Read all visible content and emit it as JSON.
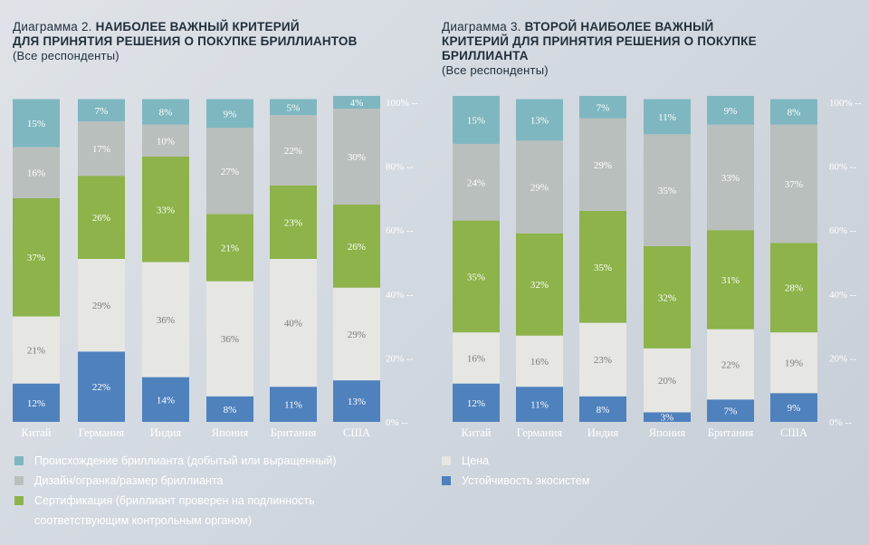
{
  "charts": [
    {
      "title_lead": "Диаграмма 2.",
      "title_bold_1": "НАИБОЛЕЕ ВАЖНЫЙ КРИТЕРИЙ",
      "title_bold_2": "ДЛЯ ПРИНЯТИЯ РЕШЕНИЯ О ПОКУПКЕ БРИЛЛИАНТОВ",
      "title_bold_3": "",
      "subtitle": "(Все респонденты)"
    },
    {
      "title_lead": "Диаграмма 3.",
      "title_bold_1": "ВТОРОЙ НАИБОЛЕЕ ВАЖНЫЙ",
      "title_bold_2": "КРИТЕРИЙ ДЛЯ ПРИНЯТИЯ РЕШЕНИЯ О ПОКУПКЕ",
      "title_bold_3": "БРИЛЛИАНТА",
      "subtitle": "(Все респонденты)"
    }
  ],
  "legend_left": [
    {
      "label": "Происхождение бриллианта (добытый или выращенный)",
      "color": "#7fb7c0"
    },
    {
      "label": "Дизайн/огранка/размер бриллианта",
      "color": "#b9bfbc"
    },
    {
      "label": "Сертификация (бриллиант проверен на подлинность",
      "color": "#8db34a"
    },
    {
      "label": "соответствующим контрольным органом)",
      "color": ""
    }
  ],
  "legend_right": [
    {
      "label": "Цена",
      "color": "#e6e6e3"
    },
    {
      "label": "Устойчивость экосистем",
      "color": "#4f81bd"
    }
  ],
  "chart_data": [
    {
      "type": "bar",
      "stacked": true,
      "categories": [
        "Китай",
        "Германия",
        "Индия",
        "Япония",
        "Британия",
        "США"
      ],
      "ylim": [
        0,
        100
      ],
      "yticks": [
        "0% --",
        "20% --",
        "40% --",
        "60% --",
        "80% --",
        "100% --"
      ],
      "series": [
        {
          "values": [
            12,
            22,
            14,
            8,
            11,
            13
          ],
          "color": "#4f81bd",
          "text_color": "#ffffff"
        },
        {
          "values": [
            21,
            29,
            36,
            36,
            40,
            29
          ],
          "color": "#e6e6e3",
          "text_color": "#7a7a78"
        },
        {
          "values": [
            37,
            26,
            33,
            21,
            23,
            26
          ],
          "color": "#8db34a",
          "text_color": "#ffffff"
        },
        {
          "values": [
            16,
            17,
            10,
            27,
            22,
            30
          ],
          "color": "#b9bfbc",
          "text_color": "#ffffff"
        },
        {
          "values": [
            15,
            7,
            8,
            9,
            5,
            4
          ],
          "color": "#7fb7c0",
          "text_color": "#ffffff"
        }
      ]
    },
    {
      "type": "bar",
      "stacked": true,
      "categories": [
        "Китай",
        "Германия",
        "Индия",
        "Япония",
        "Британия",
        "США"
      ],
      "ylim": [
        0,
        100
      ],
      "yticks": [
        "0% --",
        "20% --",
        "40% --",
        "60% --",
        "80% --",
        "100% --"
      ],
      "series": [
        {
          "values": [
            12,
            11,
            8,
            3,
            7,
            9
          ],
          "color": "#4f81bd",
          "text_color": "#ffffff"
        },
        {
          "values": [
            16,
            16,
            23,
            20,
            22,
            19
          ],
          "color": "#e6e6e3",
          "text_color": "#7a7a78"
        },
        {
          "values": [
            35,
            32,
            35,
            32,
            31,
            28
          ],
          "color": "#8db34a",
          "text_color": "#ffffff"
        },
        {
          "values": [
            24,
            29,
            29,
            35,
            33,
            37
          ],
          "color": "#b9bfbc",
          "text_color": "#ffffff"
        },
        {
          "values": [
            15,
            13,
            7,
            11,
            9,
            8
          ],
          "color": "#7fb7c0",
          "text_color": "#ffffff"
        }
      ]
    }
  ]
}
